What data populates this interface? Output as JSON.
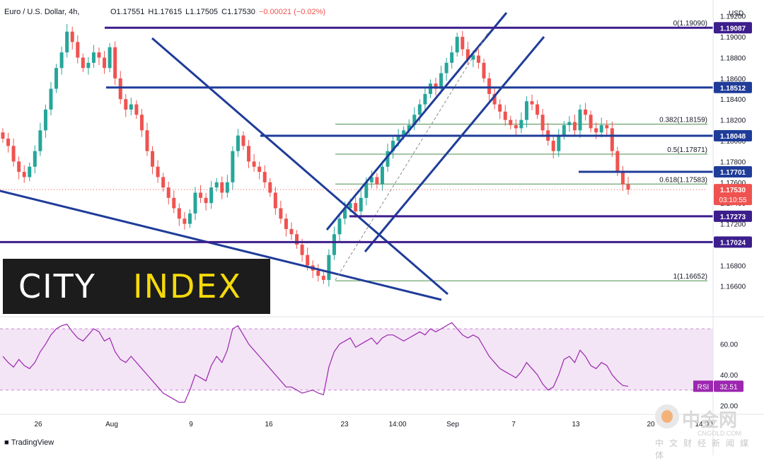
{
  "header": {
    "symbol": "Euro / U.S. Dollar, 4h,",
    "open": "O1.17551",
    "high": "H1.17615",
    "low": "L1.17505",
    "close": "C1.17530",
    "change": "−0.00021 (−0.02%)"
  },
  "currency_label": "USD",
  "footer": {
    "tradingview": "TradingView"
  },
  "logo": {
    "word1": "CITY",
    "word2": "INDEX",
    "color1": "#ffffff",
    "color2": "#f5d90a"
  },
  "watermark": {
    "name": "中金网",
    "url": "CNGOLD.COM",
    "sub": "中文财经新闻媒体"
  },
  "colors": {
    "up": "#26a69a",
    "down": "#ef5350",
    "trendline": "#1f3c99",
    "level": "#3c1e8c",
    "fib": "#4c8c4c",
    "rsi": "#9c27b0",
    "rsi_bg": "#f3e5f5",
    "price": "#ef5350"
  },
  "chart_data": [
    {
      "type": "candlestick",
      "title": "Euro / U.S. Dollar, 4h",
      "y_axis_ticks": [
        1.166,
        1.168,
        1.17,
        1.172,
        1.174,
        1.176,
        1.178,
        1.18,
        1.182,
        1.184,
        1.186,
        1.188,
        1.19,
        1.192
      ],
      "ylim": [
        1.1636,
        1.193
      ],
      "x_axis_labels": [
        "26",
        "Aug",
        "9",
        "16",
        "23",
        "14:00",
        "Sep",
        "7",
        "13",
        "20",
        "14:00"
      ],
      "horizontal_levels": [
        {
          "label": "1.19087",
          "value": 1.19087
        },
        {
          "label": "1.18512",
          "value": 1.18512
        },
        {
          "label": "1.18048",
          "value": 1.18048
        },
        {
          "label": "1.17701",
          "value": 1.17701
        },
        {
          "label": "1.17273",
          "value": 1.17273
        },
        {
          "label": "1.17024",
          "value": 1.17024
        }
      ],
      "fibonacci": [
        {
          "label": "0(1.19090)",
          "value": 1.1909
        },
        {
          "label": "0.382(1.18159)",
          "value": 1.18159
        },
        {
          "label": "0.5(1.17871)",
          "value": 1.17871
        },
        {
          "label": "0.618(1.17583)",
          "value": 1.17583
        },
        {
          "label": "1(1.16652)",
          "value": 1.16652
        }
      ],
      "last_price": {
        "label": "1.17530",
        "value": 1.1753,
        "countdown": "03:10:55"
      },
      "close_path": [
        1.1802,
        1.1795,
        1.178,
        1.177,
        1.1765,
        1.1775,
        1.179,
        1.181,
        1.183,
        1.185,
        1.187,
        1.1885,
        1.1905,
        1.1895,
        1.188,
        1.187,
        1.1875,
        1.1885,
        1.188,
        1.187,
        1.189,
        1.186,
        1.184,
        1.183,
        1.1835,
        1.1825,
        1.181,
        1.179,
        1.1775,
        1.1765,
        1.1755,
        1.1745,
        1.1735,
        1.1725,
        1.172,
        1.173,
        1.175,
        1.1745,
        1.174,
        1.1755,
        1.176,
        1.175,
        1.176,
        1.179,
        1.1805,
        1.1795,
        1.178,
        1.1775,
        1.177,
        1.176,
        1.175,
        1.1735,
        1.1725,
        1.1715,
        1.171,
        1.17,
        1.169,
        1.168,
        1.1675,
        1.167,
        1.1666,
        1.169,
        1.171,
        1.1725,
        1.1735,
        1.174,
        1.1732,
        1.1745,
        1.176,
        1.1765,
        1.1758,
        1.1775,
        1.179,
        1.18,
        1.1805,
        1.181,
        1.1815,
        1.1825,
        1.1835,
        1.1845,
        1.1855,
        1.185,
        1.1865,
        1.1875,
        1.1885,
        1.19,
        1.1888,
        1.1878,
        1.1882,
        1.1875,
        1.186,
        1.1845,
        1.1835,
        1.1828,
        1.182,
        1.1815,
        1.1812,
        1.182,
        1.1838,
        1.1835,
        1.1825,
        1.181,
        1.18,
        1.179,
        1.1805,
        1.1815,
        1.1818,
        1.181,
        1.183,
        1.1825,
        1.1812,
        1.1808,
        1.1815,
        1.1812,
        1.179,
        1.177,
        1.1758,
        1.1753
      ]
    },
    {
      "type": "line",
      "title": "RSI",
      "y_axis_ticks": [
        20.0,
        40.0,
        60.0
      ],
      "ylim": [
        16,
        76
      ],
      "bands": [
        30,
        70
      ],
      "last_value": {
        "label": "RSI",
        "value": "32.51"
      },
      "series": [
        {
          "values": [
            52,
            48,
            45,
            50,
            46,
            44,
            48,
            55,
            60,
            66,
            70,
            72,
            73,
            68,
            64,
            62,
            66,
            70,
            68,
            62,
            64,
            55,
            50,
            48,
            52,
            48,
            44,
            40,
            36,
            32,
            28,
            26,
            24,
            22,
            22,
            30,
            40,
            38,
            36,
            46,
            52,
            48,
            56,
            70,
            72,
            66,
            60,
            56,
            52,
            48,
            44,
            40,
            36,
            32,
            32,
            30,
            28,
            29,
            30,
            28,
            27,
            45,
            55,
            60,
            62,
            64,
            58,
            60,
            62,
            64,
            60,
            64,
            66,
            66,
            64,
            62,
            64,
            66,
            68,
            66,
            70,
            68,
            70,
            72,
            74,
            70,
            66,
            64,
            66,
            64,
            58,
            52,
            48,
            44,
            42,
            40,
            38,
            42,
            48,
            44,
            40,
            34,
            30,
            32,
            40,
            50,
            52,
            48,
            56,
            52,
            46,
            44,
            48,
            46,
            40,
            36,
            33,
            32.5
          ]
        }
      ]
    }
  ]
}
